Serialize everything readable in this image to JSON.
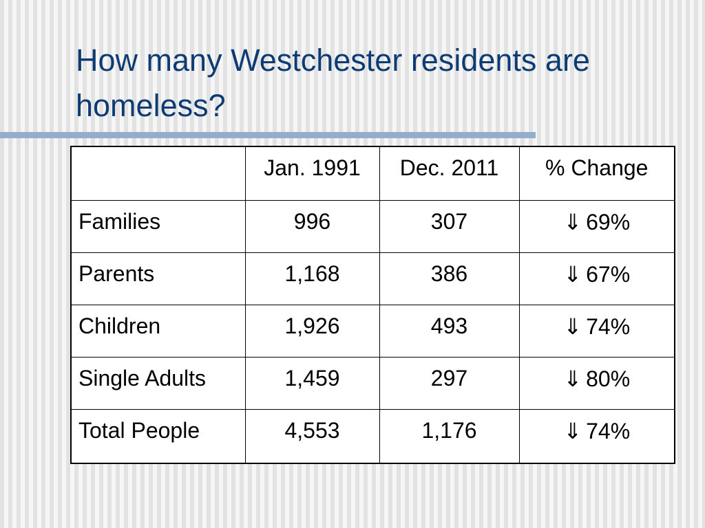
{
  "slide": {
    "title": "How many Westchester residents are homeless?"
  },
  "table": {
    "headers": [
      "",
      "Jan. 1991",
      "Dec. 2011",
      "% Change"
    ],
    "rows": [
      {
        "label": "Families",
        "jan_1991": "996",
        "dec_2011": "307",
        "change_arrow": "⇓",
        "change_value": "69%"
      },
      {
        "label": "Parents",
        "jan_1991": "1,168",
        "dec_2011": "386",
        "change_arrow": "⇓",
        "change_value": "67%"
      },
      {
        "label": "Children",
        "jan_1991": "1,926",
        "dec_2011": "493",
        "change_arrow": "⇓",
        "change_value": "74%"
      },
      {
        "label": "Single Adults",
        "jan_1991": "1,459",
        "dec_2011": "297",
        "change_arrow": "⇓",
        "change_value": "80%"
      },
      {
        "label": "Total People",
        "jan_1991": "4,553",
        "dec_2011": "1,176",
        "change_arrow": "⇓",
        "change_value": "74%"
      }
    ]
  },
  "colors": {
    "title": "#0d3b73",
    "rule": "#93aecb"
  }
}
